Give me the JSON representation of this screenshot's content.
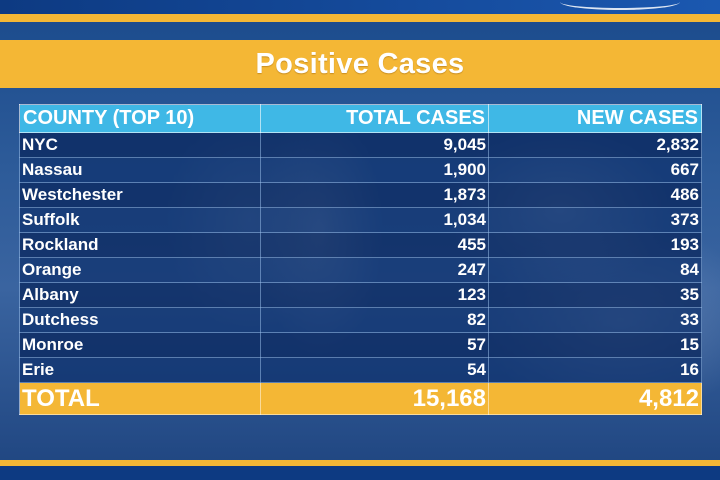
{
  "title": "Positive Cases",
  "colors": {
    "gold": "#f4b735",
    "header_blue": "#3fb8e6",
    "navy": "#0b2f6c",
    "text": "#ffffff"
  },
  "table": {
    "headers": [
      "COUNTY (TOP 10)",
      "TOTAL CASES",
      "NEW CASES"
    ],
    "rows": [
      {
        "county": "NYC",
        "total": "9,045",
        "new": "2,832"
      },
      {
        "county": "Nassau",
        "total": "1,900",
        "new": "667"
      },
      {
        "county": "Westchester",
        "total": "1,873",
        "new": "486"
      },
      {
        "county": "Suffolk",
        "total": "1,034",
        "new": "373"
      },
      {
        "county": "Rockland",
        "total": "455",
        "new": "193"
      },
      {
        "county": "Orange",
        "total": "247",
        "new": "84"
      },
      {
        "county": "Albany",
        "total": "123",
        "new": "35"
      },
      {
        "county": "Dutchess",
        "total": "82",
        "new": "33"
      },
      {
        "county": "Monroe",
        "total": "57",
        "new": "15"
      },
      {
        "county": "Erie",
        "total": "54",
        "new": "16"
      }
    ],
    "total_row": {
      "label": "TOTAL",
      "total": "15,168",
      "new": "4,812"
    }
  }
}
